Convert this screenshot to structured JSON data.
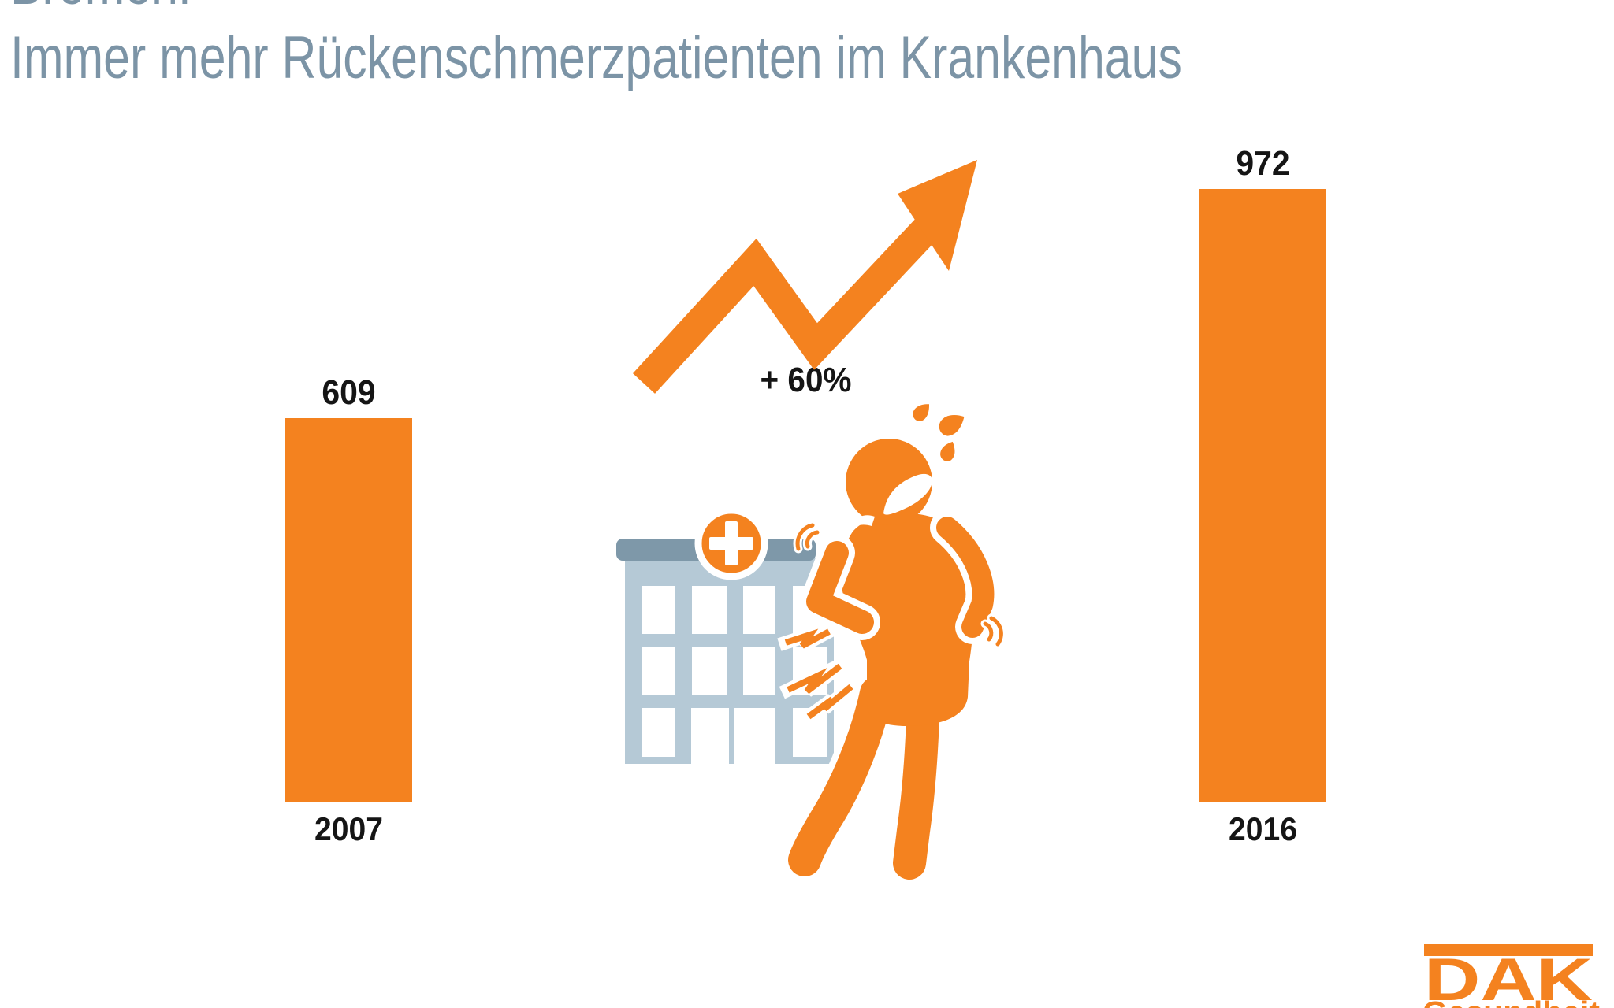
{
  "title": {
    "line1": "Bremen:",
    "line2": "Immer mehr Rückenschmerzpatienten im Krankenhaus"
  },
  "chart_data": {
    "type": "bar",
    "title": "Bremen: Immer mehr Rückenschmerzpatienten im Krankenhaus",
    "categories": [
      "2007",
      "2016"
    ],
    "values": [
      609,
      972
    ],
    "value_labels": [
      "609",
      "972"
    ],
    "annotation": "+ 60%",
    "bar_color": "#F4821F",
    "grid": false,
    "legend": false
  },
  "annotation": {
    "label": "+ 60%"
  },
  "logo": {
    "brand": "DAK",
    "subtitle": "Gesundheit"
  },
  "icons": [
    {
      "name": "trend-arrow-icon",
      "meaning": "rising zigzag arrow"
    },
    {
      "name": "hospital-icon",
      "meaning": "hospital building"
    },
    {
      "name": "medical-cross-icon",
      "meaning": "orange circle with white cross"
    },
    {
      "name": "back-pain-person-icon",
      "meaning": "person clutching aching back"
    },
    {
      "name": "pain-flash-icon",
      "meaning": "lightning pain flashes at lower back"
    },
    {
      "name": "sweat-drops-icon",
      "meaning": "sweat drops beside head"
    },
    {
      "name": "motion-arcs-icon",
      "meaning": "trembling motion arcs"
    }
  ],
  "colors": {
    "orange": "#F4821F",
    "title_text": "#7C94A6",
    "building_wall": "#B5C9D6",
    "building_roof": "#7E98A9",
    "label_text": "#151515",
    "background": "#FFFFFF"
  }
}
